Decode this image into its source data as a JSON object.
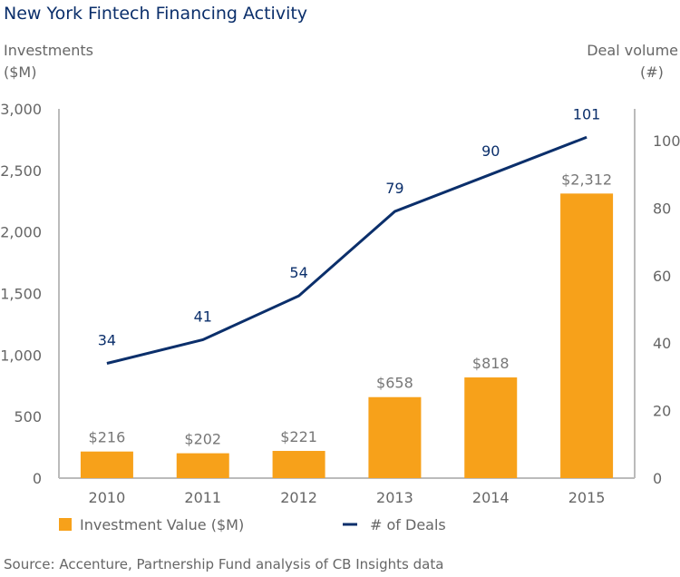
{
  "chart_data": {
    "type": "bar+line",
    "title": "New York Fintech Financing Activity",
    "ylabel_left": [
      "Investments",
      "($M)"
    ],
    "ylabel_right": [
      "Deal volume",
      "(#)"
    ],
    "categories": [
      "2010",
      "2011",
      "2012",
      "2013",
      "2014",
      "2015"
    ],
    "series": [
      {
        "name": "Investment Value ($M)",
        "type": "bar",
        "axis": "left",
        "values": [
          216,
          202,
          221,
          658,
          818,
          2312
        ],
        "labels": [
          "$216",
          "$202",
          "$221",
          "$658",
          "$818",
          "$2,312"
        ],
        "color": "#F7A11A"
      },
      {
        "name": "# of Deals",
        "type": "line",
        "axis": "right",
        "values": [
          34,
          41,
          54,
          79,
          90,
          101
        ],
        "labels": [
          "34",
          "41",
          "54",
          "79",
          "90",
          "101"
        ],
        "color": "#0B2F6B"
      }
    ],
    "left_ticks": [
      "0",
      "500",
      "1,000",
      "1,500",
      "2,000",
      "2,500",
      "3,000"
    ],
    "left_tick_values": [
      0,
      500,
      1000,
      1500,
      2000,
      2500,
      3000
    ],
    "right_ticks": [
      "0",
      "20",
      "40",
      "60",
      "80",
      "100"
    ],
    "right_tick_values": [
      0,
      20,
      40,
      60,
      80,
      100
    ],
    "ylim_left": [
      0,
      3000
    ],
    "ylim_right": [
      0,
      109.4
    ],
    "legend_placement": "bottom",
    "source": "Source: Accenture, Partnership Fund analysis of CB Insights data"
  }
}
